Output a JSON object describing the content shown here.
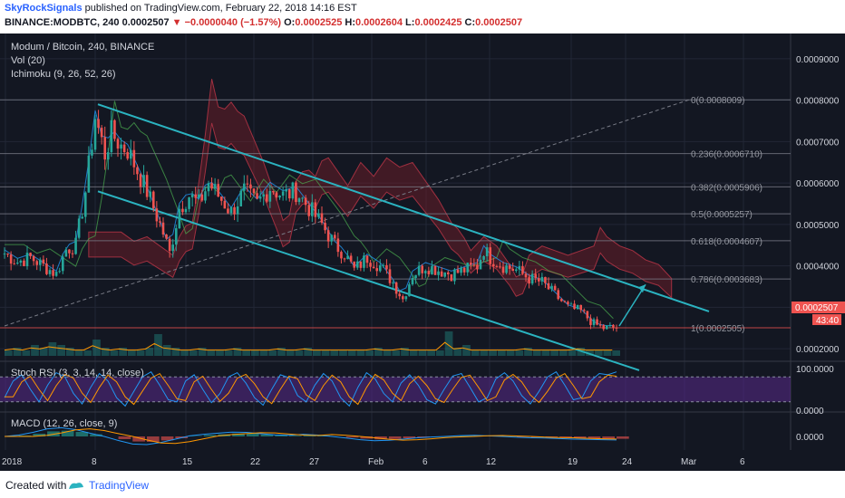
{
  "header": {
    "author": "SkyRockSignals",
    "published": "published on TradingView.com, February 22, 2018 14:16 EST",
    "symbol": "BINANCE:MODBTC, 240",
    "last": "0.0002507",
    "change": "−0.0000040 (−1.57%)",
    "o_label": "O:",
    "o": "0.0002525",
    "h_label": "H:",
    "h": "0.0002604",
    "l_label": "L:",
    "l": "0.0002425",
    "c_label": "C:",
    "c": "0.0002507"
  },
  "legend": {
    "title": "Modum / Bitcoin, 240, BINANCE",
    "vol": "Vol (20)",
    "ichimoku": "Ichimoku (9, 26, 52, 26)",
    "stoch": "Stoch RSI (3, 3, 14, 14, close)",
    "macd": "MACD (12, 26, close, 9)"
  },
  "price_label": "0.0002507",
  "countdown": "43:40",
  "colors": {
    "background": "#131722",
    "up": "#26a69a",
    "down": "#ef5350",
    "channel": "#2bb3c0",
    "stoch_band": "#5a2a8a",
    "accent": "#2962ff"
  },
  "chart_data": {
    "type": "candlestick",
    "title": "Modum / Bitcoin, 240, BINANCE",
    "y_ticks": [
      "0.0009000",
      "0.0008000",
      "0.0007000",
      "0.0006000",
      "0.0005000",
      "0.0004000",
      "0.0003000",
      "0.0002000"
    ],
    "x_ticks": [
      "2018",
      "8",
      "15",
      "22",
      "27",
      "Feb",
      "6",
      "12",
      "19",
      "24",
      "Mar",
      "6"
    ],
    "stoch_ticks": [
      "100.0000",
      "0.0000"
    ],
    "macd_ticks": [
      "0.0000"
    ],
    "fib_levels": [
      {
        "label": "0(0.0008009)",
        "value": 0.0008009
      },
      {
        "label": "0.236(0.0006710)",
        "value": 0.000671
      },
      {
        "label": "0.382(0.0005906)",
        "value": 0.0005906
      },
      {
        "label": "0.5(0.0005257)",
        "value": 0.0005257
      },
      {
        "label": "0.618(0.0004607)",
        "value": 0.0004607
      },
      {
        "label": "0.786(0.0003683)",
        "value": 0.0003683
      },
      {
        "label": "1(0.0002505)",
        "value": 0.0002505
      }
    ],
    "last_close": 0.0002507,
    "ohlc": {
      "open": 0.0002525,
      "high": 0.0002604,
      "low": 0.0002425,
      "close": 0.0002507
    },
    "ylim": [
      0.000185,
      0.00095
    ],
    "price_path": [
      [
        0,
        0.00043
      ],
      [
        4,
        0.00041
      ],
      [
        8,
        0.00042
      ],
      [
        12,
        0.0004
      ],
      [
        16,
        0.00038
      ],
      [
        19,
        0.00044
      ],
      [
        22,
        0.00045
      ],
      [
        25,
        0.00058
      ],
      [
        28,
        0.00076
      ],
      [
        31,
        0.00067
      ],
      [
        33,
        0.00072
      ],
      [
        36,
        0.00069
      ],
      [
        38,
        0.00068
      ],
      [
        41,
        0.00063
      ],
      [
        44,
        0.00058
      ],
      [
        46,
        0.00054
      ],
      [
        49,
        0.00048
      ],
      [
        51,
        0.00043
      ],
      [
        54,
        0.00054
      ],
      [
        57,
        0.00057
      ],
      [
        60,
        0.00055
      ],
      [
        63,
        0.0006
      ],
      [
        66,
        0.00057
      ],
      [
        70,
        0.00053
      ],
      [
        74,
        0.00058
      ],
      [
        78,
        0.00055
      ],
      [
        82,
        0.00059
      ],
      [
        86,
        0.00057
      ],
      [
        90,
        0.00058
      ],
      [
        94,
        0.00054
      ],
      [
        98,
        0.0005
      ],
      [
        102,
        0.00045
      ],
      [
        105,
        0.00043
      ],
      [
        108,
        0.00039
      ],
      [
        112,
        0.00042
      ],
      [
        116,
        0.0004
      ],
      [
        120,
        0.00036
      ],
      [
        123,
        0.00032
      ],
      [
        126,
        0.00038
      ],
      [
        130,
        0.0004
      ],
      [
        134,
        0.00039
      ],
      [
        138,
        0.00038
      ],
      [
        142,
        0.00039
      ],
      [
        146,
        0.0004
      ],
      [
        148,
        0.00044
      ],
      [
        150,
        0.00042
      ],
      [
        154,
        0.0004
      ],
      [
        158,
        0.00039
      ],
      [
        162,
        0.00037
      ],
      [
        166,
        0.00036
      ],
      [
        170,
        0.00033
      ],
      [
        174,
        0.0003
      ],
      [
        178,
        0.00029
      ],
      [
        182,
        0.00026
      ],
      [
        185,
        0.00025
      ],
      [
        187,
        0.000251
      ]
    ],
    "vol_bars": [
      2,
      3,
      2,
      4,
      3,
      5,
      4,
      3,
      2,
      2,
      6,
      3,
      2,
      3,
      2,
      2,
      3,
      8,
      4,
      3,
      2,
      2,
      3,
      2,
      2,
      2,
      3,
      2,
      2,
      2,
      2,
      3,
      2,
      2,
      3,
      2,
      2,
      2,
      2,
      2,
      2,
      2,
      3,
      2,
      2,
      3,
      2,
      2,
      2,
      2,
      9,
      3,
      4,
      2,
      2,
      2,
      2,
      2,
      2,
      3,
      2,
      2,
      2,
      2,
      2,
      3,
      2,
      2,
      2,
      2
    ],
    "stoch": [
      30,
      70,
      85,
      50,
      20,
      60,
      90,
      80,
      40,
      15,
      55,
      88,
      70,
      30,
      10,
      45,
      80,
      92,
      60,
      25,
      20,
      70,
      85,
      50,
      18,
      40,
      80,
      90,
      65,
      30,
      12,
      50,
      85,
      78,
      35,
      20,
      60,
      88,
      70,
      30,
      10,
      55,
      90,
      75,
      40,
      20,
      65,
      85,
      60,
      25,
      15,
      50,
      82,
      88,
      55,
      20,
      30,
      75,
      90,
      70,
      35,
      15,
      45,
      80,
      92,
      60,
      25,
      30,
      70,
      88,
      85,
      92
    ],
    "macd": [
      0,
      0.5,
      1.5,
      2.8,
      3.2,
      2.5,
      1.2,
      0,
      -1.5,
      -2.8,
      -3,
      -2.2,
      -1,
      0.2,
      0.8,
      1.2,
      1.6,
      1.5,
      1,
      0.6,
      0.4,
      0.8,
      0.5,
      0,
      -0.6,
      -1.2,
      -1.6,
      -1.4,
      -1,
      -0.5,
      -0.2,
      0,
      0.3,
      0.4,
      0.2,
      0,
      -0.3,
      -0.5,
      -0.6,
      -0.8,
      -1,
      -1.1,
      -1.2,
      -1.3
    ]
  }
}
